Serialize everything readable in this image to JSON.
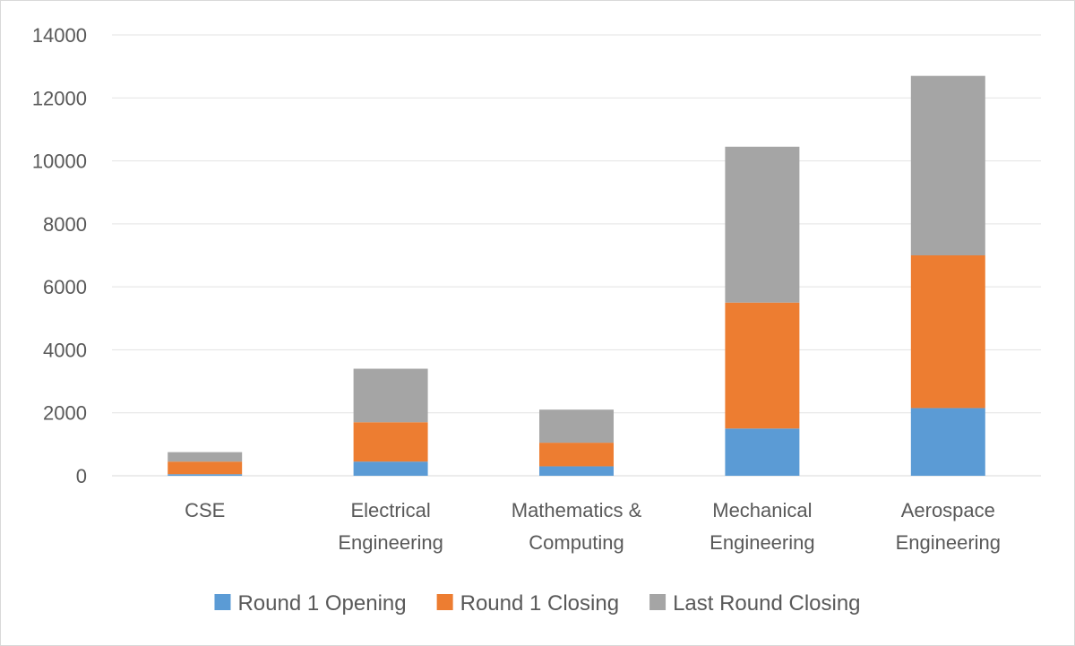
{
  "chart_data": {
    "type": "bar",
    "stacked": true,
    "categories": [
      [
        "CSE"
      ],
      [
        "Electrical",
        "Engineering"
      ],
      [
        "Mathematics &",
        "Computing"
      ],
      [
        "Mechanical",
        "Engineering"
      ],
      [
        "Aerospace",
        "Engineering"
      ]
    ],
    "series": [
      {
        "name": "Round 1 Opening",
        "color": "#5b9bd5",
        "values": [
          50,
          450,
          300,
          1500,
          2150
        ]
      },
      {
        "name": "Round 1 Closing",
        "color": "#ed7d31",
        "values": [
          400,
          1250,
          750,
          4000,
          4850
        ]
      },
      {
        "name": "Last Round Closing",
        "color": "#a5a5a5",
        "values": [
          300,
          1700,
          1050,
          4950,
          5700
        ]
      }
    ],
    "y_ticks": [
      "0",
      "2000",
      "4000",
      "6000",
      "8000",
      "10000",
      "12000",
      "14000"
    ],
    "ylim": [
      0,
      14000
    ],
    "grid": true,
    "legend_position": "bottom"
  }
}
